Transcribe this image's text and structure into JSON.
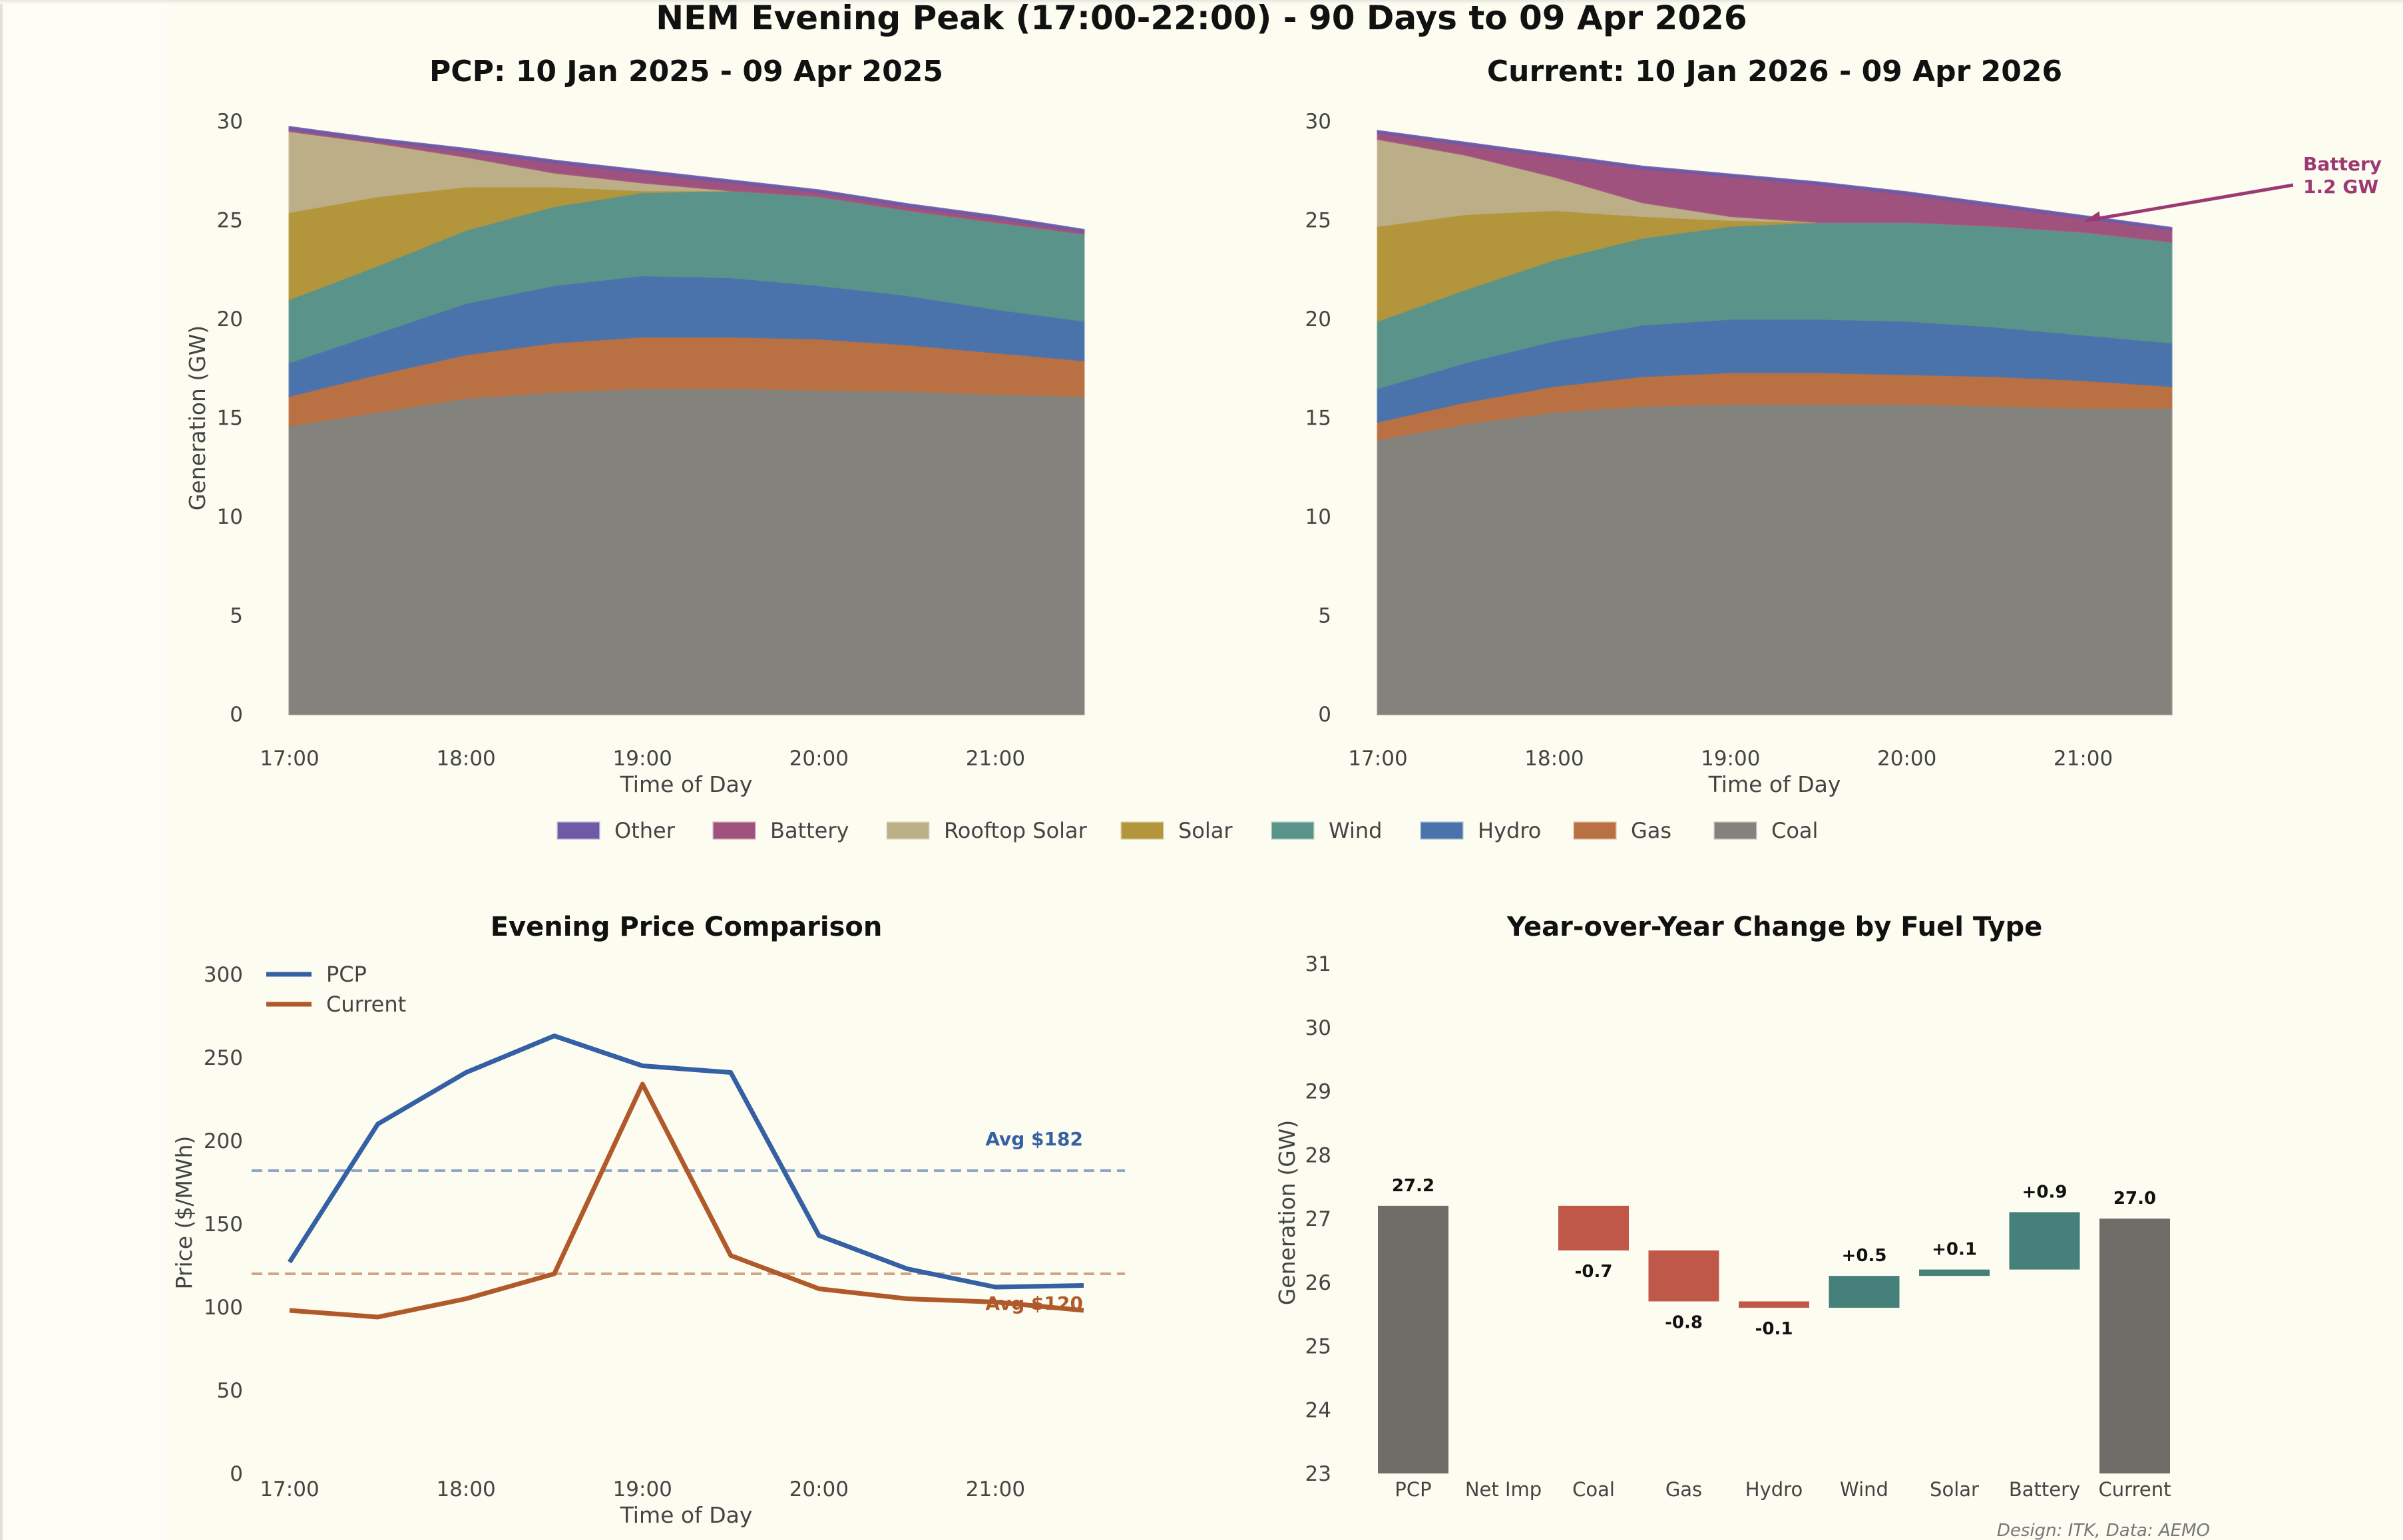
{
  "figure": {
    "suptitle": "NEM Evening Peak (17:00-22:00) - 90 Days to 09 Apr 2026",
    "credit": "Design: ITK, Data: AEMO"
  },
  "legend": {
    "items": [
      {
        "name": "Other",
        "color": "#6f5aa6"
      },
      {
        "name": "Battery",
        "color": "#a0527e"
      },
      {
        "name": "Rooftop Solar",
        "color": "#bcae87"
      },
      {
        "name": "Solar",
        "color": "#b3953c"
      },
      {
        "name": "Wind",
        "color": "#5a938a"
      },
      {
        "name": "Hydro",
        "color": "#4b73ab"
      },
      {
        "name": "Gas",
        "color": "#b97043"
      },
      {
        "name": "Coal",
        "color": "#83827c"
      }
    ]
  },
  "chart_data": [
    {
      "type": "area",
      "stacked": true,
      "title": "PCP: 10 Jan 2025 - 09 Apr 2025",
      "xlabel": "Time of Day",
      "ylabel": "Generation (GW)",
      "ylim": [
        0,
        30
      ],
      "yticks": [
        "0",
        "5",
        "10",
        "15",
        "20",
        "25",
        "30"
      ],
      "xticks": [
        "17:00",
        "18:00",
        "19:00",
        "20:00",
        "21:00"
      ],
      "x": [
        "17:00",
        "17:30",
        "18:00",
        "18:30",
        "19:00",
        "19:30",
        "20:00",
        "20:30",
        "21:00",
        "21:30"
      ],
      "series": [
        {
          "name": "Coal",
          "color": "#83827c",
          "values": [
            14.6,
            15.3,
            16.0,
            16.3,
            16.5,
            16.5,
            16.4,
            16.35,
            16.2,
            16.1
          ]
        },
        {
          "name": "Gas",
          "color": "#b97043",
          "values": [
            1.5,
            1.9,
            2.2,
            2.5,
            2.6,
            2.6,
            2.6,
            2.35,
            2.1,
            1.8
          ]
        },
        {
          "name": "Hydro",
          "color": "#4b73ab",
          "values": [
            1.7,
            2.1,
            2.6,
            2.9,
            3.1,
            3.0,
            2.7,
            2.5,
            2.2,
            2.0
          ]
        },
        {
          "name": "Wind",
          "color": "#5a938a",
          "values": [
            3.2,
            3.4,
            3.7,
            4.0,
            4.2,
            4.4,
            4.5,
            4.3,
            4.4,
            4.4
          ]
        },
        {
          "name": "Solar",
          "color": "#b3953c",
          "values": [
            4.4,
            3.5,
            2.2,
            1.0,
            0.1,
            0.0,
            0.0,
            0.0,
            0.0,
            0.0
          ]
        },
        {
          "name": "Rooftop Solar",
          "color": "#bcae87",
          "values": [
            4.1,
            2.7,
            1.5,
            0.7,
            0.4,
            0.0,
            0.0,
            0.0,
            0.0,
            0.0
          ]
        },
        {
          "name": "Battery",
          "color": "#a0527e",
          "values": [
            0.1,
            0.1,
            0.3,
            0.5,
            0.5,
            0.4,
            0.2,
            0.2,
            0.2,
            0.1
          ]
        },
        {
          "name": "Other",
          "color": "#6f5aa6",
          "values": [
            0.1,
            0.1,
            0.1,
            0.1,
            0.1,
            0.1,
            0.1,
            0.1,
            0.1,
            0.1
          ]
        }
      ]
    },
    {
      "type": "area",
      "stacked": true,
      "title": "Current: 10 Jan 2026 - 09 Apr 2026",
      "xlabel": "Time of Day",
      "ylabel": "",
      "ylim": [
        0,
        30
      ],
      "yticks": [
        "0",
        "5",
        "10",
        "15",
        "20",
        "25",
        "30"
      ],
      "xticks": [
        "17:00",
        "18:00",
        "19:00",
        "20:00",
        "21:00"
      ],
      "x": [
        "17:00",
        "17:30",
        "18:00",
        "18:30",
        "19:00",
        "19:30",
        "20:00",
        "20:30",
        "21:00",
        "21:30"
      ],
      "series": [
        {
          "name": "Coal",
          "color": "#83827c",
          "values": [
            13.9,
            14.7,
            15.3,
            15.6,
            15.7,
            15.7,
            15.7,
            15.6,
            15.5,
            15.5
          ]
        },
        {
          "name": "Gas",
          "color": "#b97043",
          "values": [
            0.9,
            1.1,
            1.3,
            1.5,
            1.6,
            1.6,
            1.5,
            1.5,
            1.4,
            1.1
          ]
        },
        {
          "name": "Hydro",
          "color": "#4b73ab",
          "values": [
            1.7,
            2.0,
            2.3,
            2.6,
            2.7,
            2.7,
            2.7,
            2.5,
            2.3,
            2.2
          ]
        },
        {
          "name": "Wind",
          "color": "#5a938a",
          "values": [
            3.4,
            3.7,
            4.1,
            4.4,
            4.7,
            4.9,
            5.0,
            5.1,
            5.2,
            5.1
          ]
        },
        {
          "name": "Solar",
          "color": "#b3953c",
          "values": [
            4.8,
            3.8,
            2.5,
            1.1,
            0.3,
            0.0,
            0.0,
            0.0,
            0.0,
            0.0
          ]
        },
        {
          "name": "Rooftop Solar",
          "color": "#bcae87",
          "values": [
            4.4,
            3.0,
            1.7,
            0.7,
            0.2,
            0.0,
            0.0,
            0.0,
            0.0,
            0.0
          ]
        },
        {
          "name": "Battery",
          "color": "#a0527e",
          "values": [
            0.3,
            0.5,
            1.0,
            1.7,
            2.0,
            1.9,
            1.4,
            1.0,
            0.7,
            0.6
          ]
        },
        {
          "name": "Other",
          "color": "#6f5aa6",
          "values": [
            0.1,
            0.1,
            0.1,
            0.1,
            0.1,
            0.1,
            0.1,
            0.1,
            0.1,
            0.1
          ]
        }
      ],
      "annotation": {
        "text_line1": "Battery",
        "text_line2": "1.2 GW",
        "color": "#9b3a72",
        "points_to": {
          "x": "21:00",
          "y": 24.9
        }
      }
    },
    {
      "type": "line",
      "title": "Evening Price Comparison",
      "xlabel": "Time of Day",
      "ylabel": "Price ($/MWh)",
      "ylim": [
        0,
        300
      ],
      "yticks": [
        "0",
        "50",
        "100",
        "150",
        "200",
        "250",
        "300"
      ],
      "xticks": [
        "17:00",
        "18:00",
        "19:00",
        "20:00",
        "21:00"
      ],
      "x": [
        "17:00",
        "17:30",
        "18:00",
        "18:30",
        "19:00",
        "19:30",
        "20:00",
        "20:30",
        "21:00",
        "21:30"
      ],
      "legend_position": "top-left",
      "series": [
        {
          "name": "PCP",
          "color": "#3560a3",
          "values": [
            127,
            210,
            241,
            263,
            245,
            241,
            143,
            123,
            112,
            113
          ],
          "avg": 182,
          "avg_label": "Avg $182"
        },
        {
          "name": "Current",
          "color": "#b0592b",
          "values": [
            98,
            94,
            105,
            120,
            234,
            131,
            111,
            105,
            103,
            98
          ],
          "avg": 120,
          "avg_label": "Avg $120"
        }
      ]
    },
    {
      "type": "bar",
      "subtype": "waterfall",
      "title": "Year-over-Year Change by Fuel Type",
      "xlabel": "",
      "ylabel": "Generation (GW)",
      "ylim": [
        23,
        31
      ],
      "yticks": [
        "23",
        "24",
        "25",
        "26",
        "27",
        "28",
        "29",
        "30",
        "31"
      ],
      "categories": [
        "PCP",
        "Net Imp",
        "Coal",
        "Gas",
        "Hydro",
        "Wind",
        "Solar",
        "Battery",
        "Current"
      ],
      "bars": [
        {
          "category": "PCP",
          "kind": "total",
          "value": 27.2,
          "label": "27.2"
        },
        {
          "category": "Net Imp",
          "kind": "delta",
          "value": 0.0,
          "label": ""
        },
        {
          "category": "Coal",
          "kind": "delta",
          "value": -0.7,
          "label": "-0.7"
        },
        {
          "category": "Gas",
          "kind": "delta",
          "value": -0.8,
          "label": "-0.8"
        },
        {
          "category": "Hydro",
          "kind": "delta",
          "value": -0.1,
          "label": "-0.1"
        },
        {
          "category": "Wind",
          "kind": "delta",
          "value": 0.5,
          "label": "+0.5"
        },
        {
          "category": "Solar",
          "kind": "delta",
          "value": 0.1,
          "label": "+0.1"
        },
        {
          "category": "Battery",
          "kind": "delta",
          "value": 0.9,
          "label": "+0.9"
        },
        {
          "category": "Current",
          "kind": "total",
          "value": 27.0,
          "label": "27.0"
        }
      ],
      "colors": {
        "total": "#6e6d68",
        "negative": "#c0584a",
        "positive": "#45807a"
      }
    }
  ]
}
